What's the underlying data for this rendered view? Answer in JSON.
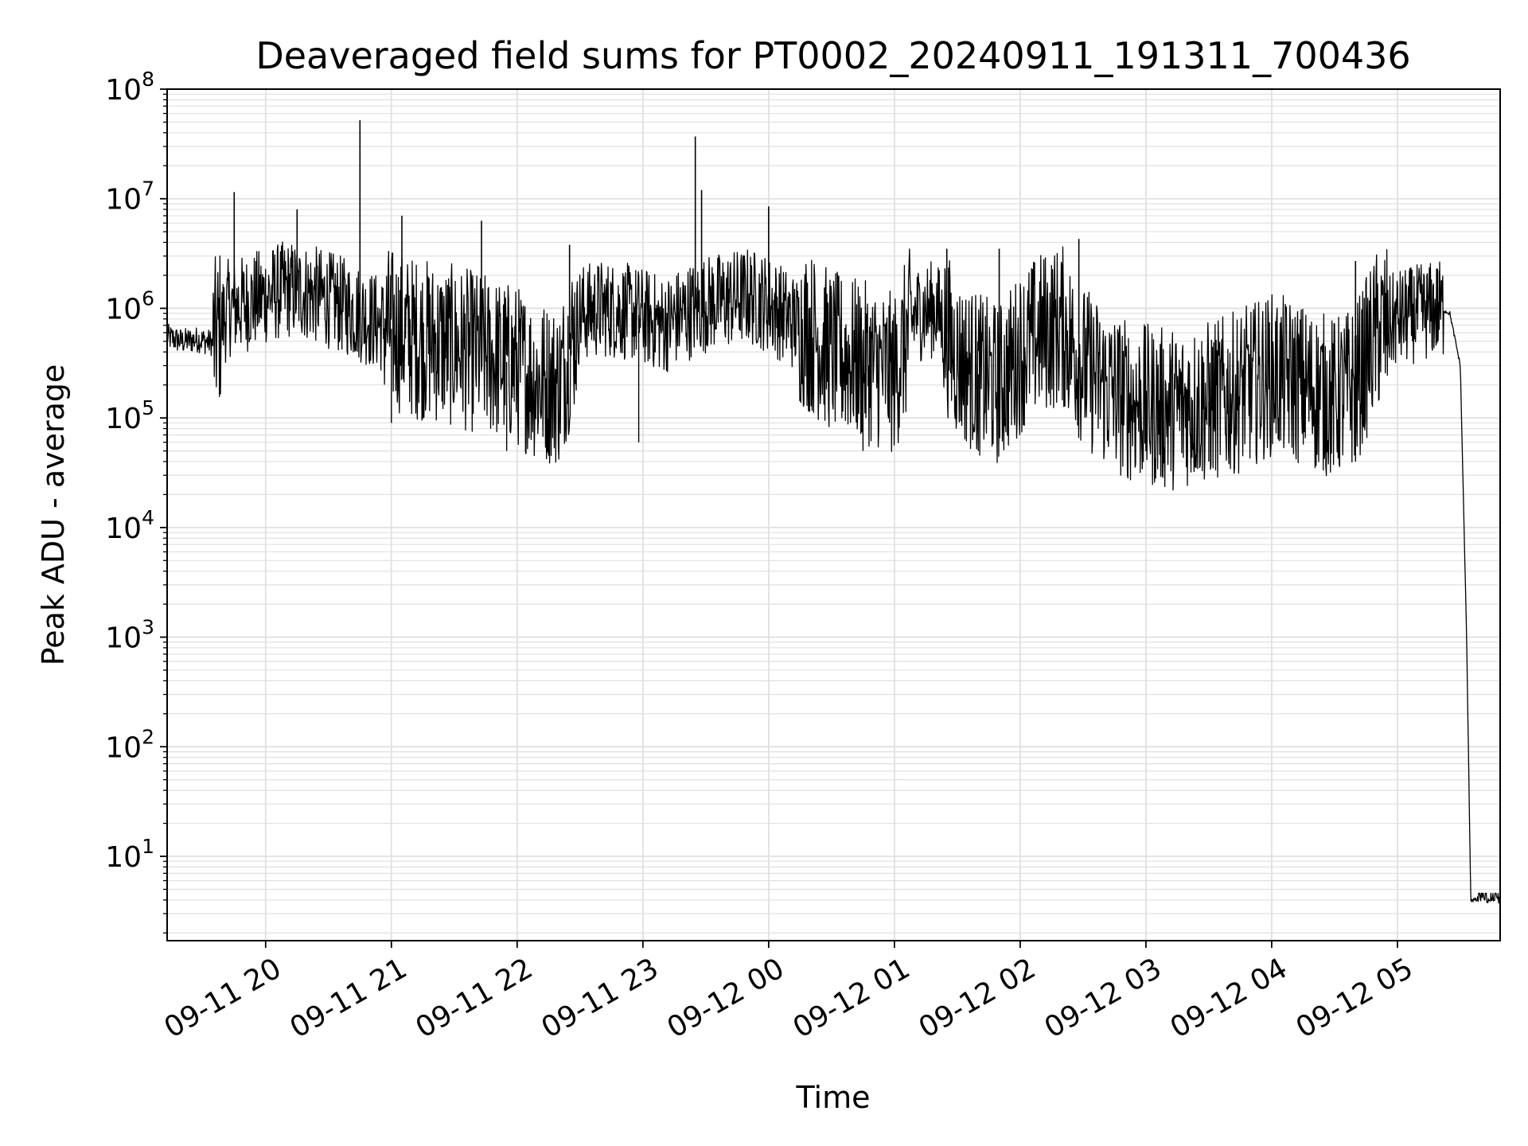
{
  "chart_data": {
    "type": "line",
    "title": "Deaveraged field sums for PT0002_20240911_191311_700436",
    "xlabel": "Time",
    "ylabel": "Peak ADU - average",
    "yscale": "log",
    "ylim": [
      1.7,
      100000000
    ],
    "xlim": [
      "2024-09-11 19:13",
      "2024-09-12 05:49"
    ],
    "grid": true,
    "legend": "none",
    "line_color": "#000000",
    "grid_color": "#e0e0e0",
    "x_ticks": [
      {
        "label": "09-11 20",
        "value": "2024-09-11 20:00"
      },
      {
        "label": "09-11 21",
        "value": "2024-09-11 21:00"
      },
      {
        "label": "09-11 22",
        "value": "2024-09-11 22:00"
      },
      {
        "label": "09-11 23",
        "value": "2024-09-11 23:00"
      },
      {
        "label": "09-12 00",
        "value": "2024-09-12 00:00"
      },
      {
        "label": "09-12 01",
        "value": "2024-09-12 01:00"
      },
      {
        "label": "09-12 02",
        "value": "2024-09-12 02:00"
      },
      {
        "label": "09-12 03",
        "value": "2024-09-12 03:00"
      },
      {
        "label": "09-12 04",
        "value": "2024-09-12 04:00"
      },
      {
        "label": "09-12 05",
        "value": "2024-09-12 05:00"
      }
    ],
    "y_ticks": [
      {
        "base": "10",
        "exp": "1",
        "value": 10
      },
      {
        "base": "10",
        "exp": "2",
        "value": 100
      },
      {
        "base": "10",
        "exp": "3",
        "value": 1000
      },
      {
        "base": "10",
        "exp": "4",
        "value": 10000
      },
      {
        "base": "10",
        "exp": "5",
        "value": 100000
      },
      {
        "base": "10",
        "exp": "6",
        "value": 1000000
      },
      {
        "base": "10",
        "exp": "7",
        "value": 10000000
      },
      {
        "base": "10",
        "exp": "8",
        "value": 100000000
      }
    ],
    "series": [
      {
        "color": "#000000",
        "x": [
          "2024-09-11 19:13",
          "2024-09-11 19:20",
          "2024-09-11 19:28",
          "2024-09-11 19:35",
          "2024-09-11 19:42",
          "2024-09-11 19:50",
          "2024-09-11 20:00",
          "2024-09-11 20:10",
          "2024-09-11 20:20",
          "2024-09-11 20:30",
          "2024-09-11 20:40",
          "2024-09-11 20:50",
          "2024-09-11 21:00",
          "2024-09-11 21:10",
          "2024-09-11 21:20",
          "2024-09-11 21:30",
          "2024-09-11 21:40",
          "2024-09-11 21:50",
          "2024-09-11 22:00",
          "2024-09-11 22:10",
          "2024-09-11 22:20",
          "2024-09-11 22:30",
          "2024-09-11 22:40",
          "2024-09-11 22:50",
          "2024-09-11 23:00",
          "2024-09-11 23:10",
          "2024-09-11 23:20",
          "2024-09-11 23:30",
          "2024-09-11 23:40",
          "2024-09-11 23:50",
          "2024-09-12 00:00",
          "2024-09-12 00:10",
          "2024-09-12 00:20",
          "2024-09-12 00:30",
          "2024-09-12 00:40",
          "2024-09-12 00:50",
          "2024-09-12 01:00",
          "2024-09-12 01:10",
          "2024-09-12 01:20",
          "2024-09-12 01:30",
          "2024-09-12 01:40",
          "2024-09-12 01:50",
          "2024-09-12 02:00",
          "2024-09-12 02:10",
          "2024-09-12 02:20",
          "2024-09-12 02:30",
          "2024-09-12 02:40",
          "2024-09-12 02:50",
          "2024-09-12 03:00",
          "2024-09-12 03:10",
          "2024-09-12 03:20",
          "2024-09-12 03:30",
          "2024-09-12 03:40",
          "2024-09-12 03:50",
          "2024-09-12 04:00",
          "2024-09-12 04:10",
          "2024-09-12 04:20",
          "2024-09-12 04:30",
          "2024-09-12 04:40",
          "2024-09-12 04:50",
          "2024-09-12 05:00",
          "2024-09-12 05:10",
          "2024-09-12 05:20",
          "2024-09-12 05:25",
          "2024-09-12 05:30",
          "2024-09-12 05:33",
          "2024-09-12 05:35",
          "2024-09-12 05:38",
          "2024-09-12 05:40",
          "2024-09-12 05:49"
        ],
        "values": [
          550000,
          500000,
          520000,
          480000,
          1000000,
          1100000,
          1300000,
          1500000,
          1400000,
          1200000,
          1000000,
          800000,
          650000,
          550000,
          500000,
          450000,
          400000,
          350000,
          300000,
          220000,
          200000,
          900000,
          1000000,
          950000,
          850000,
          700000,
          900000,
          1100000,
          1200000,
          1300000,
          1100000,
          800000,
          600000,
          400000,
          350000,
          300000,
          250000,
          900000,
          1000000,
          350000,
          250000,
          200000,
          400000,
          600000,
          700000,
          300000,
          200000,
          150000,
          130000,
          120000,
          130000,
          140000,
          160000,
          200000,
          250000,
          220000,
          180000,
          150000,
          200000,
          600000,
          800000,
          900000,
          1000000,
          900000,
          300000,
          1000,
          4,
          4,
          4,
          4
        ],
        "spikes": [
          {
            "x": "2024-09-11 19:45",
            "y": 11500000
          },
          {
            "x": "2024-09-11 20:15",
            "y": 8000000
          },
          {
            "x": "2024-09-11 20:45",
            "y": 52000000
          },
          {
            "x": "2024-09-11 21:05",
            "y": 7000000
          },
          {
            "x": "2024-09-11 21:43",
            "y": 6300000
          },
          {
            "x": "2024-09-11 22:25",
            "y": 3800000
          },
          {
            "x": "2024-09-11 23:25",
            "y": 37000000
          },
          {
            "x": "2024-09-11 23:28",
            "y": 12000000
          },
          {
            "x": "2024-09-12 00:00",
            "y": 8500000
          },
          {
            "x": "2024-09-12 01:25",
            "y": 3500000
          },
          {
            "x": "2024-09-12 01:50",
            "y": 3500000
          },
          {
            "x": "2024-09-12 02:28",
            "y": 4300000
          },
          {
            "x": "2024-09-12 04:40",
            "y": 2700000
          },
          {
            "x": "2024-09-12 05:20",
            "y": 2200000
          }
        ],
        "dips": [
          {
            "x": "2024-09-11 21:00",
            "y": 90000
          },
          {
            "x": "2024-09-11 21:55",
            "y": 50000
          },
          {
            "x": "2024-09-11 22:58",
            "y": 60000
          },
          {
            "x": "2024-09-12 00:45",
            "y": 50000
          },
          {
            "x": "2024-09-12 01:40",
            "y": 50000
          },
          {
            "x": "2024-09-12 02:55",
            "y": 37000
          },
          {
            "x": "2024-09-12 03:30",
            "y": 40000
          },
          {
            "x": "2024-09-12 04:40",
            "y": 40000
          }
        ]
      }
    ]
  }
}
